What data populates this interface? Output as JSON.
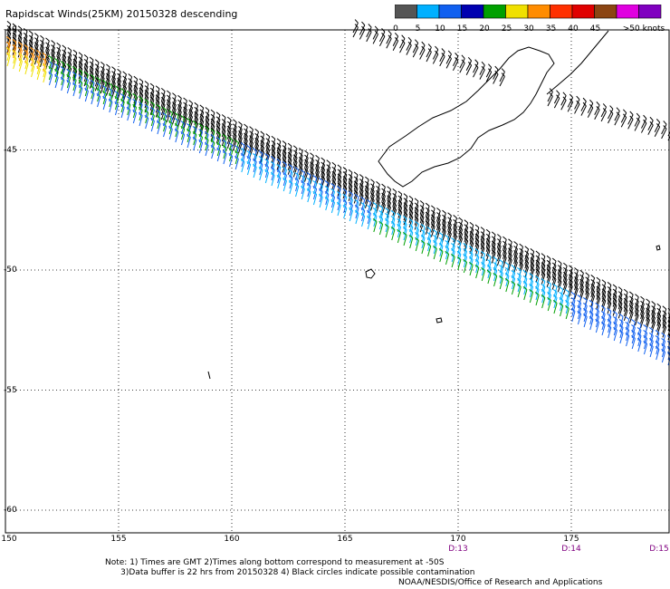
{
  "title": "Rapidscat Winds(25KM) 20150328 descending",
  "colorbar": {
    "labels": [
      "0",
      "5",
      "10",
      "15",
      "20",
      "25",
      "30",
      "35",
      "40",
      "45",
      ">50 knots"
    ],
    "colors": [
      "#555555",
      "#00b0ff",
      "#1060f0",
      "#0000b0",
      "#00a000",
      "#f0e000",
      "#ff8c00",
      "#ff3000",
      "#e00000",
      "#8b4513",
      "#e000e0",
      "#8000c0"
    ]
  },
  "axes": {
    "lat_labels": [
      "-40",
      "-45",
      "-50",
      "-55",
      "-60"
    ],
    "lon_labels": [
      "150",
      "155",
      "160",
      "165",
      "170",
      "175"
    ],
    "time_labels": [
      "D:13",
      "D:14",
      "D:15"
    ]
  },
  "notes": {
    "line1": "Note: 1) Times are GMT 2)Times along bottom correspond to measurement at -50S",
    "line2": "3)Data buffer is 22 hrs from 20150328 4) Black circles indicate possible contamination"
  },
  "credit": "NOAA/NESDIS/Office of Research and Applications",
  "colors": {
    "land_outline": "#000000",
    "grid": "#000000"
  }
}
